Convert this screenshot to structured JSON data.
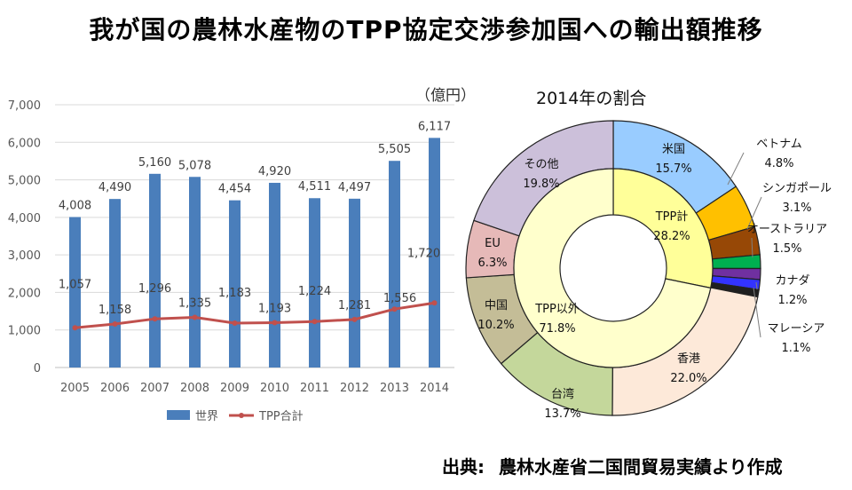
{
  "title": "我が国の農林水産物のTPP協定交渉参加国への輸出額推移",
  "unit": "（億円）",
  "source": {
    "label": "出典:",
    "text": "農林水産省二国間貿易実績より作成"
  },
  "colors": {
    "bar": "#4a7ebb",
    "line": "#c0504d"
  },
  "chart_data": [
    {
      "type": "bar",
      "categories": [
        "2005",
        "2006",
        "2007",
        "2008",
        "2009",
        "2010",
        "2011",
        "2012",
        "2013",
        "2014"
      ],
      "series": [
        {
          "name": "世界",
          "type": "bar",
          "values": [
            4008,
            4490,
            5160,
            5078,
            4454,
            4920,
            4511,
            4497,
            5505,
            6117
          ],
          "labels": [
            "4,008",
            "4,490",
            "5,160",
            "5,078",
            "4,454",
            "4,920",
            "4,511",
            "4,497",
            "5,505",
            "6,117"
          ]
        },
        {
          "name": "TPP合計",
          "type": "line",
          "values": [
            1057,
            1158,
            1296,
            1335,
            1183,
            1193,
            1224,
            1281,
            1556,
            1720
          ],
          "labels": [
            "1,057",
            "1,158",
            "1,296",
            "1,335",
            "1,183",
            "1,193",
            "1,224",
            "1,281",
            "1,556",
            "1,720"
          ]
        }
      ],
      "ylim": [
        0,
        7000
      ],
      "yticks": [
        "0",
        "1,000",
        "2,000",
        "3,000",
        "4,000",
        "5,000",
        "6,000",
        "7,000"
      ],
      "grid": true,
      "legend": "bottom"
    },
    {
      "type": "pie",
      "title": "2014年の割合",
      "inner": [
        {
          "label": "TPP計",
          "value": 28.2,
          "pct": "28.2%",
          "color": "#ffff99"
        },
        {
          "label": "TPP以外",
          "value": 71.8,
          "pct": "71.8%",
          "color": "#ffffcc"
        }
      ],
      "outer": [
        {
          "label": "米国",
          "value": 15.7,
          "pct": "15.7%",
          "color": "#99ccff"
        },
        {
          "label": "ベトナム",
          "value": 4.8,
          "pct": "4.8%",
          "color": "#ffc000"
        },
        {
          "label": "シンガポール",
          "value": 3.1,
          "pct": "3.1%",
          "color": "#974806"
        },
        {
          "label": "オーストラリア",
          "value": 1.5,
          "pct": "1.5%",
          "color": "#00b050"
        },
        {
          "label": "カナダ",
          "value": 1.2,
          "pct": "1.2%",
          "color": "#7030a0"
        },
        {
          "label": "マレーシア",
          "value": 1.1,
          "pct": "1.1%",
          "color": "#3333ff"
        },
        {
          "label": "",
          "value": 0.8,
          "pct": "",
          "color": "#1f1f1f"
        },
        {
          "label": "香港",
          "value": 22.0,
          "pct": "22.0%",
          "color": "#fde9d9"
        },
        {
          "label": "台湾",
          "value": 13.7,
          "pct": "13.7%",
          "color": "#c4d79b"
        },
        {
          "label": "中国",
          "value": 10.2,
          "pct": "10.2%",
          "color": "#c4bd97"
        },
        {
          "label": "EU",
          "value": 6.3,
          "pct": "6.3%",
          "color": "#e6b9b8"
        },
        {
          "label": "その他",
          "value": 19.8,
          "pct": "19.8%",
          "color": "#ccc0da"
        }
      ]
    }
  ]
}
